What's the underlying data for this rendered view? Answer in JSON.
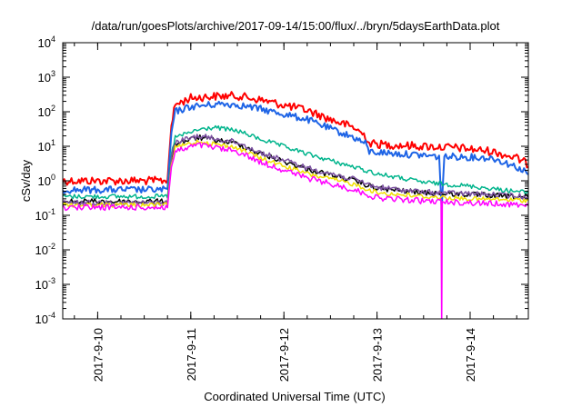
{
  "title": "/data/run/goesPlots/archive/2017-09-14/15:00/flux/../bryn/5daysEarthData.plot",
  "chart_data": {
    "type": "line",
    "title": "/data/run/goesPlots/archive/2017-09-14/15:00/flux/../bryn/5daysEarthData.plot",
    "xlabel": "Coordinated Universal Time (UTC)",
    "ylabel": "cSv/day",
    "y_scale": "log",
    "ylim": [
      0.0001,
      10000
    ],
    "xlim": [
      "2017-09-09 15:00",
      "2017-09-14 15:00"
    ],
    "grid": false,
    "legend": "none",
    "x_ticks": [
      "2017-9-10",
      "2017-9-11",
      "2017-9-12",
      "2017-9-13",
      "2017-9-14"
    ],
    "y_ticks": [
      {
        "value": 0.0001,
        "base": "10",
        "exp": "-4"
      },
      {
        "value": 0.001,
        "base": "10",
        "exp": "-3"
      },
      {
        "value": 0.01,
        "base": "10",
        "exp": "-2"
      },
      {
        "value": 0.1,
        "base": "10",
        "exp": "-1"
      },
      {
        "value": 1,
        "base": "10",
        "exp": "0"
      },
      {
        "value": 10,
        "base": "10",
        "exp": "1"
      },
      {
        "value": 100,
        "base": "10",
        "exp": "2"
      },
      {
        "value": 1000,
        "base": "10",
        "exp": "3"
      },
      {
        "value": 10000,
        "base": "10",
        "exp": "4"
      }
    ],
    "series": [
      {
        "color": "#ff0000",
        "width": 2,
        "noise": 0.18,
        "points": [
          [
            "2017-09-09 15:00",
            1.0
          ],
          [
            "2017-09-10 17:00",
            1.0
          ],
          [
            "2017-09-10 18:00",
            1.1
          ],
          [
            "2017-09-10 19:00",
            40
          ],
          [
            "2017-09-10 20:00",
            160
          ],
          [
            "2017-09-11 00:00",
            250
          ],
          [
            "2017-09-11 06:00",
            280
          ],
          [
            "2017-09-11 12:00",
            290
          ],
          [
            "2017-09-11 18:00",
            220
          ],
          [
            "2017-09-12 06:00",
            110
          ],
          [
            "2017-09-12 12:00",
            60
          ],
          [
            "2017-09-12 18:00",
            35
          ],
          [
            "2017-09-12 21:00",
            20
          ],
          [
            "2017-09-12 22:00",
            12
          ],
          [
            "2017-09-13 03:00",
            11
          ],
          [
            "2017-09-13 12:00",
            10
          ],
          [
            "2017-09-13 21:00",
            9
          ],
          [
            "2017-09-14 06:00",
            7
          ],
          [
            "2017-09-14 12:00",
            4.5
          ],
          [
            "2017-09-14 15:00",
            3.0
          ]
        ]
      },
      {
        "color": "#1e64e6",
        "width": 2,
        "noise": 0.15,
        "points": [
          [
            "2017-09-09 15:00",
            0.55
          ],
          [
            "2017-09-10 18:00",
            0.55
          ],
          [
            "2017-09-10 19:00",
            25
          ],
          [
            "2017-09-10 20:00",
            100
          ],
          [
            "2017-09-11 00:00",
            140
          ],
          [
            "2017-09-11 08:00",
            170
          ],
          [
            "2017-09-11 12:00",
            160
          ],
          [
            "2017-09-11 18:00",
            120
          ],
          [
            "2017-09-12 06:00",
            60
          ],
          [
            "2017-09-12 12:00",
            32
          ],
          [
            "2017-09-12 18:00",
            18
          ],
          [
            "2017-09-12 21:00",
            12
          ],
          [
            "2017-09-12 22:00",
            7
          ],
          [
            "2017-09-13 06:00",
            6
          ],
          [
            "2017-09-13 12:00",
            5.5
          ],
          [
            "2017-09-13 16:00",
            5
          ],
          [
            "2017-09-13 16:40",
            0.15
          ],
          [
            "2017-09-13 17:20",
            5
          ],
          [
            "2017-09-13 21:00",
            5
          ],
          [
            "2017-09-14 06:00",
            4.5
          ],
          [
            "2017-09-14 12:00",
            2.5
          ],
          [
            "2017-09-14 15:00",
            1.6
          ]
        ]
      },
      {
        "color": "#00b48c",
        "width": 1.5,
        "noise": 0.1,
        "points": [
          [
            "2017-09-09 15:00",
            0.35
          ],
          [
            "2017-09-10 18:00",
            0.35
          ],
          [
            "2017-09-10 19:00",
            6
          ],
          [
            "2017-09-10 20:00",
            18
          ],
          [
            "2017-09-11 02:00",
            30
          ],
          [
            "2017-09-11 06:00",
            35
          ],
          [
            "2017-09-11 12:00",
            28
          ],
          [
            "2017-09-11 18:00",
            16
          ],
          [
            "2017-09-12 06:00",
            6
          ],
          [
            "2017-09-12 18:00",
            2.5
          ],
          [
            "2017-09-13 00:00",
            1.6
          ],
          [
            "2017-09-13 12:00",
            0.9
          ],
          [
            "2017-09-14 00:00",
            0.7
          ],
          [
            "2017-09-14 15:00",
            0.45
          ]
        ]
      },
      {
        "color": "#000000",
        "width": 1.5,
        "noise": 0.12,
        "points": [
          [
            "2017-09-09 15:00",
            0.25
          ],
          [
            "2017-09-10 18:00",
            0.25
          ],
          [
            "2017-09-10 19:00",
            4
          ],
          [
            "2017-09-10 20:00",
            12
          ],
          [
            "2017-09-11 02:00",
            18
          ],
          [
            "2017-09-11 12:00",
            12
          ],
          [
            "2017-09-11 18:00",
            6
          ],
          [
            "2017-09-12 06:00",
            2.2
          ],
          [
            "2017-09-12 18:00",
            1.0
          ],
          [
            "2017-09-13 00:00",
            0.6
          ],
          [
            "2017-09-13 12:00",
            0.45
          ],
          [
            "2017-09-14 00:00",
            0.4
          ],
          [
            "2017-09-14 15:00",
            0.33
          ]
        ]
      },
      {
        "color": "#7a4fa0",
        "width": 1.5,
        "noise": 0.12,
        "points": [
          [
            "2017-09-09 15:00",
            0.23
          ],
          [
            "2017-09-10 18:00",
            0.23
          ],
          [
            "2017-09-10 19:00",
            4.5
          ],
          [
            "2017-09-10 20:00",
            13
          ],
          [
            "2017-09-11 02:00",
            20
          ],
          [
            "2017-09-11 12:00",
            13
          ],
          [
            "2017-09-11 18:00",
            6.5
          ],
          [
            "2017-09-12 06:00",
            2.4
          ],
          [
            "2017-09-12 18:00",
            1.1
          ],
          [
            "2017-09-13 00:00",
            0.65
          ],
          [
            "2017-09-13 12:00",
            0.47
          ],
          [
            "2017-09-14 00:00",
            0.42
          ],
          [
            "2017-09-14 15:00",
            0.35
          ]
        ]
      },
      {
        "color": "#f0e000",
        "width": 1.5,
        "noise": 0.1,
        "points": [
          [
            "2017-09-09 15:00",
            0.2
          ],
          [
            "2017-09-10 18:00",
            0.2
          ],
          [
            "2017-09-10 19:00",
            3
          ],
          [
            "2017-09-10 20:00",
            9
          ],
          [
            "2017-09-11 02:00",
            14
          ],
          [
            "2017-09-11 12:00",
            9
          ],
          [
            "2017-09-11 18:00",
            4.5
          ],
          [
            "2017-09-12 06:00",
            1.6
          ],
          [
            "2017-09-12 18:00",
            0.8
          ],
          [
            "2017-09-13 00:00",
            0.45
          ],
          [
            "2017-09-13 12:00",
            0.35
          ],
          [
            "2017-09-14 00:00",
            0.3
          ],
          [
            "2017-09-14 15:00",
            0.27
          ]
        ]
      },
      {
        "color": "#ff00ff",
        "width": 1.5,
        "noise": 0.13,
        "points": [
          [
            "2017-09-09 15:00",
            0.17
          ],
          [
            "2017-09-10 18:00",
            0.17
          ],
          [
            "2017-09-10 19:00",
            2.5
          ],
          [
            "2017-09-10 20:00",
            7
          ],
          [
            "2017-09-11 02:00",
            11
          ],
          [
            "2017-09-11 12:00",
            7
          ],
          [
            "2017-09-11 18:00",
            3.5
          ],
          [
            "2017-09-12 06:00",
            1.2
          ],
          [
            "2017-09-12 18:00",
            0.55
          ],
          [
            "2017-09-13 00:00",
            0.32
          ],
          [
            "2017-09-13 12:00",
            0.26
          ],
          [
            "2017-09-13 16:30",
            0.25
          ],
          [
            "2017-09-13 16:40",
            5e-05
          ],
          [
            "2017-09-13 16:50",
            0.25
          ],
          [
            "2017-09-14 00:00",
            0.23
          ],
          [
            "2017-09-14 15:00",
            0.2
          ]
        ]
      }
    ]
  }
}
